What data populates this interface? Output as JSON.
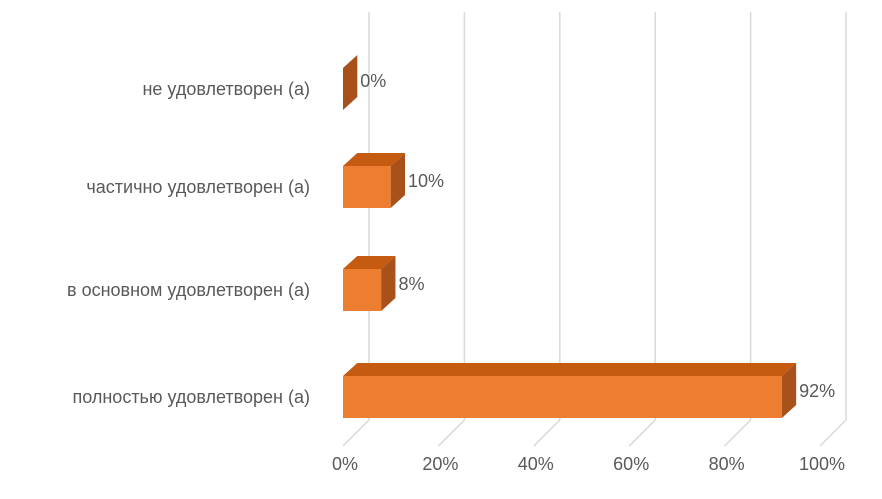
{
  "chart_data": {
    "type": "bar",
    "orientation": "horizontal",
    "style": "3d",
    "categories": [
      "не удовлетворен (а)",
      "частично удовлетворен (а)",
      "в основном удовлетворен (а)",
      "полностью удовлетворен (а)"
    ],
    "values": [
      0,
      10,
      8,
      92
    ],
    "data_labels": [
      "0%",
      "10%",
      "8%",
      "92%"
    ],
    "x_ticks": [
      "0%",
      "20%",
      "40%",
      "60%",
      "80%",
      "100%"
    ],
    "xlim": [
      0,
      100
    ],
    "grid": true,
    "legend": "none",
    "colors": {
      "bar_front": "#ed7d31",
      "bar_top": "#c55a11",
      "bar_side": "#a9511a",
      "gridline": "#d9d9d9",
      "text": "#595959"
    }
  }
}
